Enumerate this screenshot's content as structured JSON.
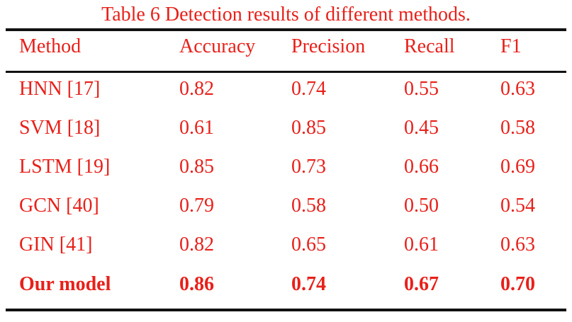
{
  "caption": "Table 6 Detection results of different methods.",
  "table": {
    "headers": [
      "Method",
      "Accuracy",
      "Precision",
      "Recall",
      "F1"
    ],
    "rows": [
      [
        "HNN [17]",
        "0.82",
        "0.74",
        "0.55",
        "0.63"
      ],
      [
        "SVM [18]",
        "0.61",
        "0.85",
        "0.45",
        "0.58"
      ],
      [
        "LSTM [19]",
        "0.85",
        "0.73",
        "0.66",
        "0.69"
      ],
      [
        "GCN [40]",
        "0.79",
        "0.58",
        "0.50",
        "0.54"
      ],
      [
        "GIN [41]",
        "0.82",
        "0.65",
        "0.61",
        "0.63"
      ],
      [
        "Our model",
        "0.86",
        "0.74",
        "0.67",
        "0.70"
      ]
    ],
    "emphasized_row": "Our model"
  },
  "colors": {
    "text": "#e8201a",
    "rules": "#111111"
  }
}
